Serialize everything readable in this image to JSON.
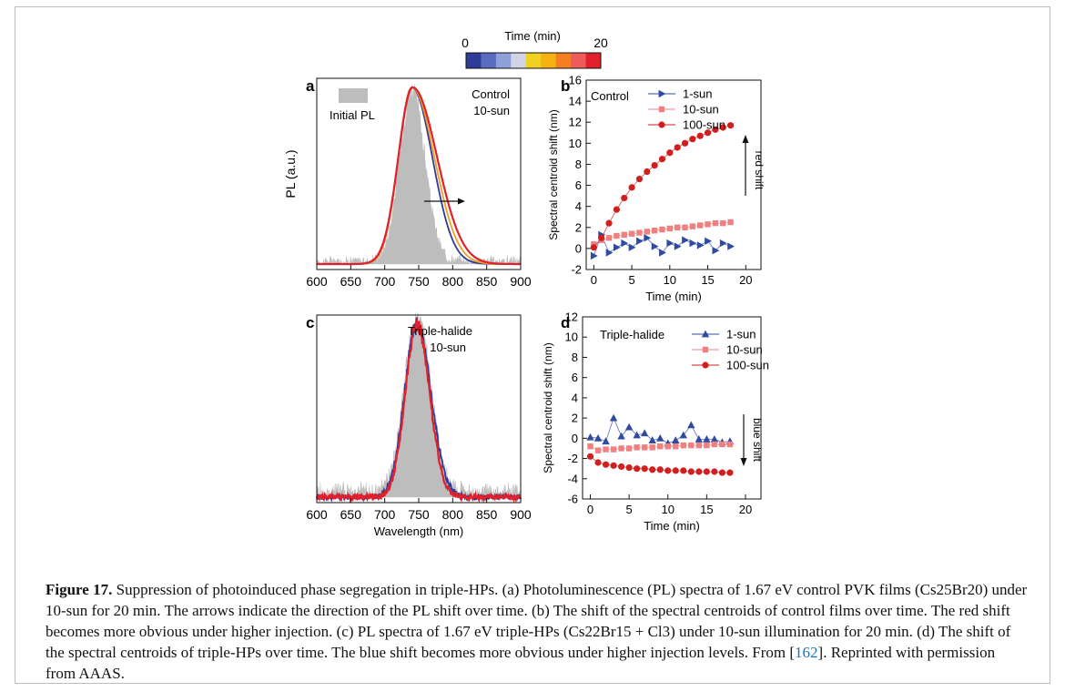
{
  "colorbar": {
    "label": "Time (min)",
    "min_label": "0",
    "max_label": "20",
    "colors": [
      "#2f3b98",
      "#5b6cc0",
      "#8f9fd8",
      "#d3d3e6",
      "#f0d020",
      "#f5b215",
      "#f47e20",
      "#ef5b5b",
      "#e0202a"
    ]
  },
  "panels": {
    "a": {
      "letter": "a",
      "ylabel": "PL (a.u.)",
      "legend_label": "Initial PL",
      "annotation_line1": "Control",
      "annotation_line2": "10-sun"
    },
    "b": {
      "letter": "b",
      "annotation": "Control",
      "arrow_label": "red shift"
    },
    "c": {
      "letter": "c",
      "annotation_line1": "Triple-halide",
      "annotation_line2": "10-sun"
    },
    "d": {
      "letter": "d",
      "annotation": "Triple-halide",
      "arrow_label": "blue shift"
    }
  },
  "caption": {
    "label": "Figure 17.",
    "text_before_ref": " Suppression of photoinduced phase segregation in triple-HPs. (a) Photoluminescence (PL) spectra of 1.67 eV control PVK films (Cs25Br20) under 10-sun for 20 min. The arrows indicate the direction of the PL shift over time. (b) The shift of the spectral centroids of control films over time. The red shift becomes more obvious under higher injection. (c) PL spectra of 1.67 eV triple-HPs (Cs22Br15 + Cl3) under 10-sun illumination for 20 min. (d) The shift of the spectral centroids of triple-HPs over time. The blue shift becomes more obvious under higher injection levels. From [",
    "ref": "162",
    "text_after_ref": "]. Reprinted with permission from AAAS."
  },
  "chart_data": [
    {
      "panel": "a",
      "type": "line",
      "xlabel": "",
      "ylabel": "PL (a.u.)",
      "xlim": [
        600,
        900
      ],
      "xticks": [
        600,
        650,
        700,
        750,
        800,
        850,
        900
      ],
      "y_ticks_shown": false,
      "peak_nm": 740,
      "series": [
        {
          "name": "Initial PL",
          "style": "filled-area",
          "color": "#bdbdbd",
          "peak": 740,
          "sigma_left": 18,
          "sigma_right": 19,
          "amplitude": 0.97
        },
        {
          "time_min": 0,
          "color": "#2f3b98",
          "peak": 740,
          "sigma_left": 20,
          "sigma_right": 30,
          "amplitude": 1.0
        },
        {
          "time_min": 10,
          "color": "#f0a020",
          "peak": 740,
          "sigma_left": 20,
          "sigma_right": 33,
          "amplitude": 1.0
        },
        {
          "time_min": 20,
          "color": "#e0202a",
          "peak": 741,
          "sigma_left": 21,
          "sigma_right": 36,
          "amplitude": 1.0
        }
      ]
    },
    {
      "panel": "b",
      "type": "scatter",
      "xlabel": "Time (min)",
      "ylabel": "Spectral centroid shift (nm)",
      "xlim": [
        -1,
        22
      ],
      "ylim": [
        -2,
        16
      ],
      "xticks": [
        0,
        5,
        10,
        15,
        20
      ],
      "yticks": [
        -2,
        0,
        2,
        4,
        6,
        8,
        10,
        12,
        14,
        16
      ],
      "series": [
        {
          "name": "1-sun",
          "marker": "triangle-right",
          "color": "#2f4aa0",
          "x": [
            0,
            1,
            2,
            3,
            4,
            5,
            6,
            7,
            8,
            9,
            10,
            11,
            12,
            13,
            14,
            15,
            16,
            17,
            18
          ],
          "y": [
            -0.7,
            1.3,
            -0.4,
            0.1,
            0.5,
            0.1,
            0.7,
            1.0,
            0.2,
            -0.4,
            0.5,
            0.2,
            0.8,
            0.5,
            0.3,
            0.7,
            -0.2,
            0.5,
            0.2
          ]
        },
        {
          "name": "10-sun",
          "marker": "square",
          "color": "#f08080",
          "x": [
            0,
            1,
            2,
            3,
            4,
            5,
            6,
            7,
            8,
            9,
            10,
            11,
            12,
            13,
            14,
            15,
            16,
            17,
            18
          ],
          "y": [
            0.4,
            0.8,
            1.0,
            1.2,
            1.3,
            1.4,
            1.5,
            1.6,
            1.7,
            1.8,
            1.9,
            2.0,
            2.0,
            2.1,
            2.2,
            2.3,
            2.4,
            2.4,
            2.5
          ]
        },
        {
          "name": "100-sun",
          "marker": "circle",
          "color": "#d11f1f",
          "x": [
            0,
            1,
            2,
            3,
            4,
            5,
            6,
            7,
            8,
            9,
            10,
            11,
            12,
            13,
            14,
            15,
            16,
            17,
            18
          ],
          "y": [
            0.1,
            1.0,
            2.4,
            3.7,
            4.8,
            5.8,
            6.6,
            7.3,
            7.9,
            8.5,
            9.1,
            9.6,
            10.0,
            10.4,
            10.7,
            11.0,
            11.3,
            11.5,
            11.7
          ]
        }
      ]
    },
    {
      "panel": "c",
      "type": "line",
      "xlabel": "Wavelength (nm)",
      "ylabel": "",
      "xlim": [
        600,
        900
      ],
      "xticks": [
        600,
        650,
        700,
        750,
        800,
        850,
        900
      ],
      "y_ticks_shown": false,
      "series": [
        {
          "style": "filled-area",
          "color": "#bdbdbd",
          "peak": 748,
          "sigma_left": 19,
          "sigma_right": 20,
          "amplitude": 1.0
        },
        {
          "time_min": 0,
          "color": "#2f3b98",
          "peak": 747,
          "sigma_left": 18,
          "sigma_right": 21,
          "amplitude": 1.0
        },
        {
          "time_min": 20,
          "color": "#e0202a",
          "peak": 747,
          "sigma_left": 17,
          "sigma_right": 19,
          "amplitude": 1.0
        }
      ]
    },
    {
      "panel": "d",
      "type": "scatter",
      "xlabel": "Time (min)",
      "ylabel": "Spectral centroid shift (nm)",
      "xlim": [
        -1,
        22
      ],
      "ylim": [
        -6,
        12
      ],
      "xticks": [
        0,
        5,
        10,
        15,
        20
      ],
      "yticks": [
        -6,
        -4,
        -2,
        0,
        2,
        4,
        6,
        8,
        10,
        12
      ],
      "series": [
        {
          "name": "1-sun",
          "marker": "triangle-up",
          "color": "#2f4aa0",
          "x": [
            0,
            1,
            2,
            3,
            4,
            5,
            6,
            7,
            8,
            9,
            10,
            11,
            12,
            13,
            14,
            15,
            16,
            17,
            18
          ],
          "y": [
            0.1,
            0.0,
            -0.3,
            2.0,
            0.2,
            1.1,
            0.3,
            0.5,
            -0.2,
            0.0,
            -0.5,
            -0.2,
            0.3,
            1.3,
            -0.1,
            -0.1,
            -0.1,
            -0.4,
            -0.3
          ]
        },
        {
          "name": "10-sun",
          "marker": "square",
          "color": "#f08080",
          "x": [
            0,
            1,
            2,
            3,
            4,
            5,
            6,
            7,
            8,
            9,
            10,
            11,
            12,
            13,
            14,
            15,
            16,
            17,
            18
          ],
          "y": [
            -0.8,
            -1.2,
            -1.1,
            -1.1,
            -1.0,
            -1.0,
            -0.9,
            -0.9,
            -0.9,
            -0.8,
            -0.8,
            -0.8,
            -0.7,
            -0.7,
            -0.7,
            -0.7,
            -0.6,
            -0.6,
            -0.6
          ]
        },
        {
          "name": "100-sun",
          "marker": "circle",
          "color": "#d11f1f",
          "x": [
            0,
            1,
            2,
            3,
            4,
            5,
            6,
            7,
            8,
            9,
            10,
            11,
            12,
            13,
            14,
            15,
            16,
            17,
            18
          ],
          "y": [
            -1.8,
            -2.4,
            -2.6,
            -2.7,
            -2.8,
            -2.9,
            -3.0,
            -3.0,
            -3.1,
            -3.1,
            -3.2,
            -3.2,
            -3.2,
            -3.3,
            -3.3,
            -3.3,
            -3.3,
            -3.4,
            -3.4
          ]
        }
      ]
    }
  ]
}
